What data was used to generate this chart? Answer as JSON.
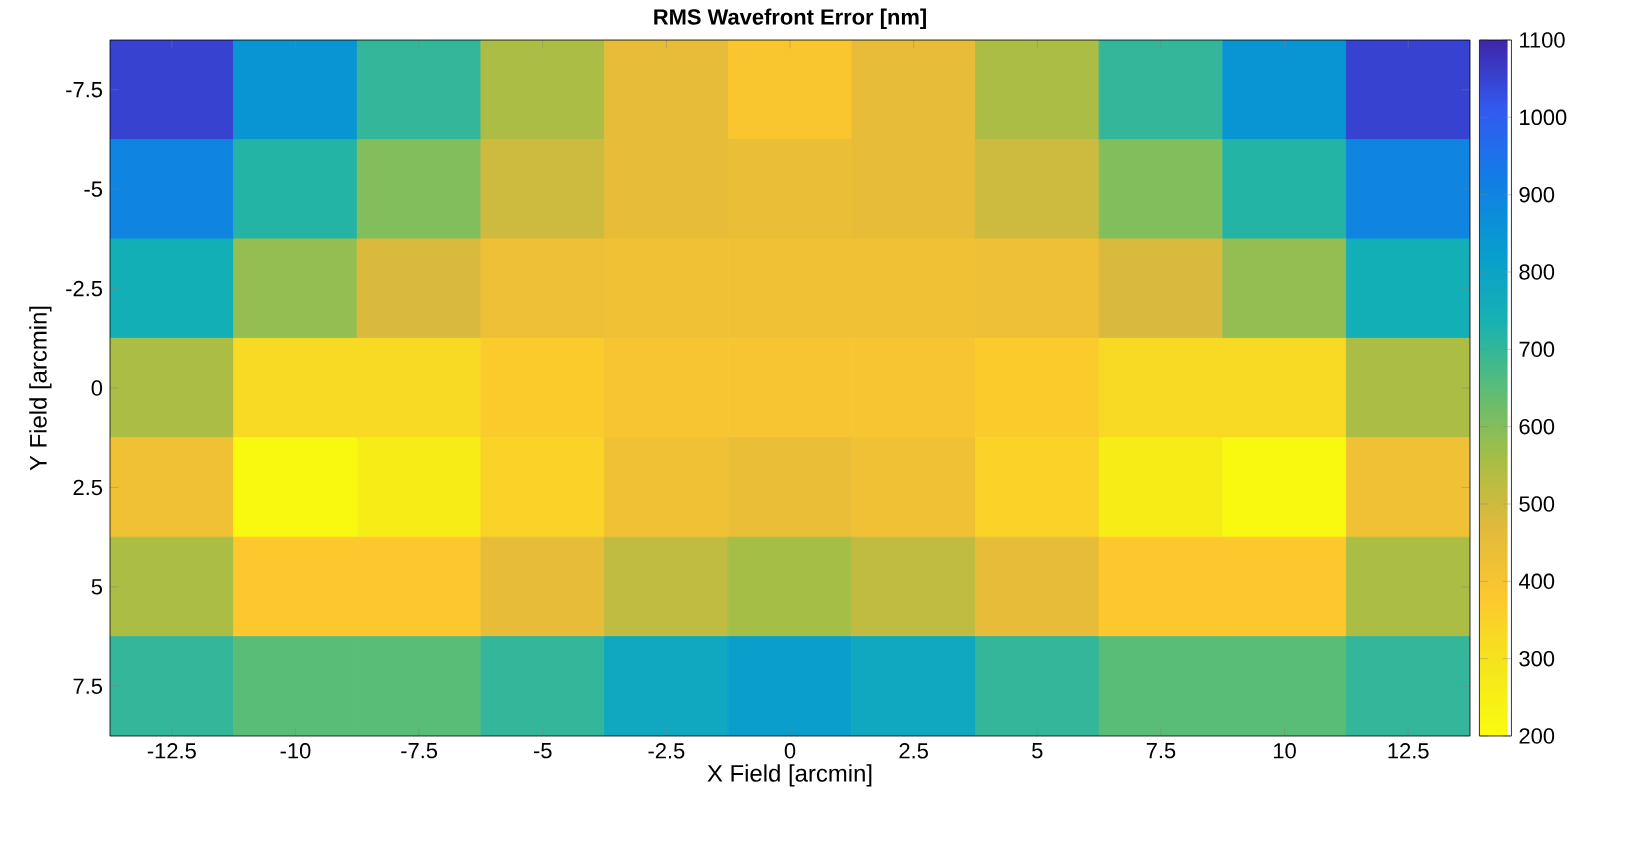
{
  "chart_data": {
    "type": "heatmap",
    "title": "RMS Wavefront Error [nm]",
    "xlabel": "X Field [arcmin]",
    "ylabel": "Y Field [arcmin]",
    "categories": [
      "-12.5",
      "-10",
      "-7.5",
      "-5",
      "-2.5",
      "0",
      "2.5",
      "5",
      "7.5",
      "10",
      "12.5"
    ],
    "y_categories": [
      "-7.5",
      "-5",
      "-2.5",
      "0",
      "2.5",
      "5",
      "7.5"
    ],
    "cells": [
      [
        1050,
        850,
        700,
        550,
        450,
        390,
        450,
        550,
        700,
        850,
        1050
      ],
      [
        900,
        720,
        600,
        500,
        450,
        440,
        450,
        500,
        600,
        720,
        900
      ],
      [
        750,
        580,
        480,
        430,
        420,
        420,
        420,
        430,
        480,
        580,
        750
      ],
      [
        550,
        330,
        330,
        370,
        400,
        400,
        400,
        370,
        330,
        330,
        550
      ],
      [
        420,
        210,
        260,
        350,
        420,
        440,
        420,
        350,
        260,
        210,
        420
      ],
      [
        550,
        380,
        380,
        450,
        520,
        560,
        520,
        450,
        380,
        380,
        550
      ],
      [
        700,
        650,
        650,
        700,
        780,
        820,
        780,
        700,
        650,
        650,
        700
      ]
    ],
    "clim": [
      200,
      1100
    ],
    "cticks": [
      200,
      300,
      400,
      500,
      600,
      700,
      800,
      900,
      1000,
      1100
    ]
  }
}
